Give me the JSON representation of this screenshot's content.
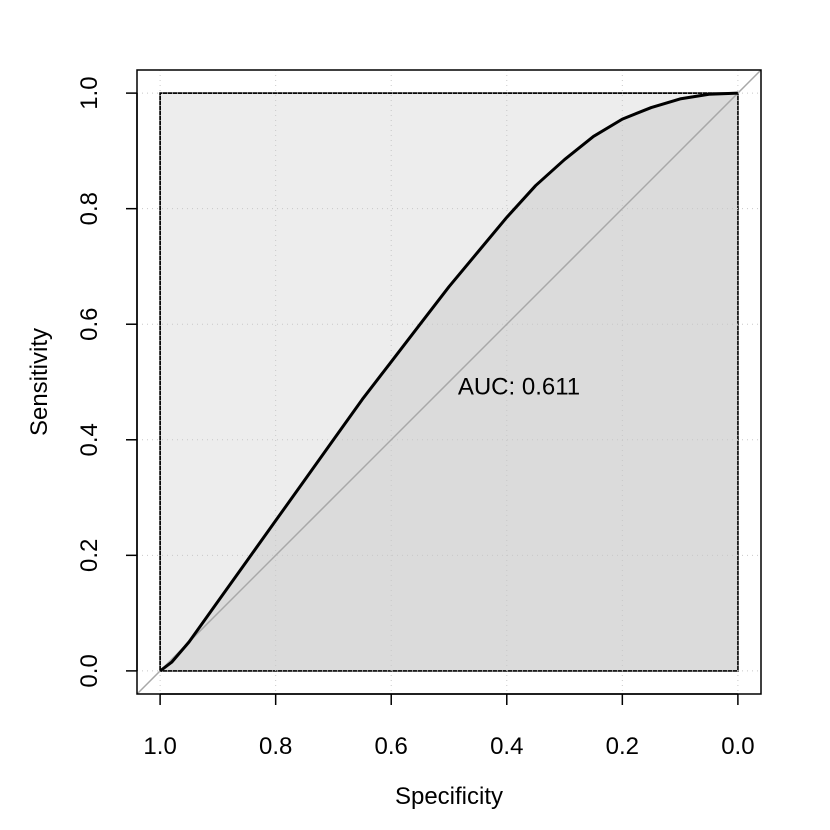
{
  "chart_data": {
    "type": "line",
    "title": "",
    "xlabel": "Specificity",
    "ylabel": "Sensitivity",
    "x_reversed": true,
    "xlim": [
      1.04,
      -0.04
    ],
    "ylim": [
      -0.04,
      1.04
    ],
    "grid": true,
    "xticks": [
      {
        "value": 1.0,
        "label": "1.0"
      },
      {
        "value": 0.8,
        "label": "0.8"
      },
      {
        "value": 0.6,
        "label": "0.6"
      },
      {
        "value": 0.4,
        "label": "0.4"
      },
      {
        "value": 0.2,
        "label": "0.2"
      },
      {
        "value": 0.0,
        "label": "0.0"
      }
    ],
    "yticks": [
      {
        "value": 0.0,
        "label": "0.0"
      },
      {
        "value": 0.2,
        "label": "0.2"
      },
      {
        "value": 0.4,
        "label": "0.4"
      },
      {
        "value": 0.6,
        "label": "0.6"
      },
      {
        "value": 0.8,
        "label": "0.8"
      },
      {
        "value": 1.0,
        "label": "1.0"
      }
    ],
    "series": [
      {
        "x": [
          1.0,
          0.98,
          0.95,
          0.9,
          0.85,
          0.8,
          0.75,
          0.7,
          0.65,
          0.6,
          0.55,
          0.5,
          0.45,
          0.4,
          0.35,
          0.3,
          0.25,
          0.2,
          0.15,
          0.1,
          0.05,
          0.0
        ],
        "y": [
          0.0,
          0.015,
          0.05,
          0.12,
          0.19,
          0.26,
          0.33,
          0.4,
          0.47,
          0.535,
          0.6,
          0.665,
          0.725,
          0.785,
          0.84,
          0.885,
          0.925,
          0.955,
          0.975,
          0.99,
          0.998,
          1.0
        ],
        "color": "#000000"
      }
    ],
    "annotation": {
      "text": "AUC: 0.611",
      "x": 0.5,
      "y": 0.48
    },
    "colors": {
      "auc_fill": "#dbdbdb",
      "upper_fill": "#ededed",
      "diagonal": "#a8a8a8",
      "grid": "#c8c8c8"
    }
  }
}
